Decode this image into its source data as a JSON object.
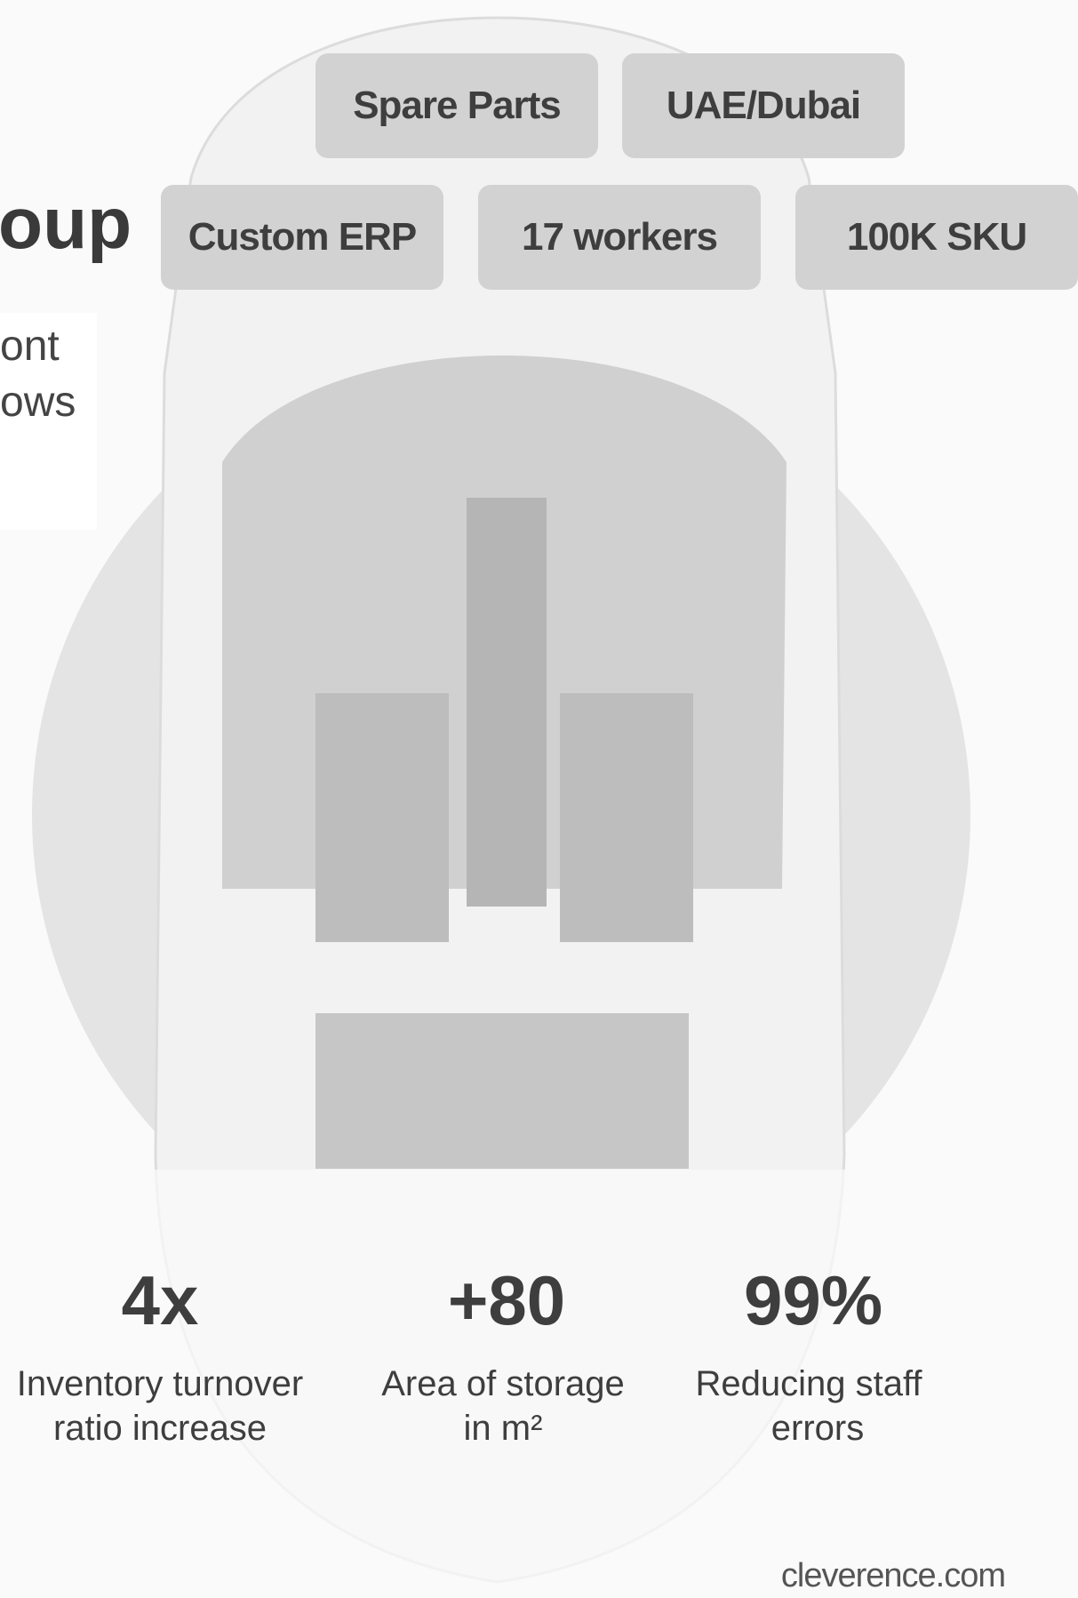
{
  "heading": {
    "title": "oup",
    "lines": [
      "ont",
      "ows"
    ]
  },
  "tags": [
    "Spare Parts",
    "UAE/Dubai",
    "Custom ERP",
    "17 workers",
    "100K SKU"
  ],
  "stats": [
    {
      "value": "4x",
      "label_lines": [
        "Inventory turnover",
        "ratio increase"
      ]
    },
    {
      "value": "+80",
      "label_lines": [
        "Area of storage",
        "in m²"
      ]
    },
    {
      "value": "99%",
      "label_lines": [
        "Reducing staff",
        "errors"
      ]
    }
  ],
  "footer": "cleverence.com"
}
